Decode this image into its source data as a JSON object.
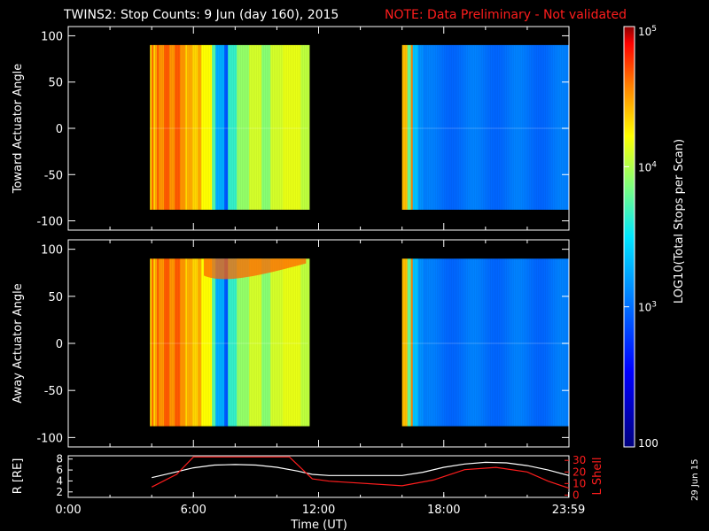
{
  "title": "TWINS2: Stop Counts:  9 Jun (day 160), 2015",
  "note": "NOTE: Data Preliminary - Not validated",
  "date_stamp": "29 Jun 15",
  "colorbar": {
    "label": "LOG10(Total Stops per Scan)",
    "ticks": [
      "100",
      "10^3",
      "10^4",
      "10^5"
    ]
  },
  "chart_data": [
    {
      "type": "heatmap",
      "ylabel": "Toward Actuator Angle",
      "yticks": [
        "100",
        "50",
        "0",
        "-50",
        "-100"
      ],
      "ylim": [
        -110,
        110
      ],
      "xlim": [
        "0:00",
        "24:00"
      ],
      "color_scale": "log",
      "value_range": [
        100,
        100000
      ],
      "data_blocks": [
        {
          "x_start": "3:55",
          "x_end": "11:30",
          "y_range": [
            -88,
            90
          ],
          "description": "high counts 10^3-10^5, banded in time"
        },
        {
          "x_start": "16:00",
          "x_end": "23:55",
          "y_range": [
            -88,
            90
          ],
          "description": "low counts ~10^2.5-10^3"
        }
      ]
    },
    {
      "type": "heatmap",
      "ylabel": "Away Actuator Angle",
      "yticks": [
        "100",
        "50",
        "0",
        "-50",
        "-100"
      ],
      "ylim": [
        -110,
        110
      ],
      "xlim": [
        "0:00",
        "24:00"
      ],
      "color_scale": "log",
      "value_range": [
        100,
        100000
      ],
      "data_blocks": [
        {
          "x_start": "3:55",
          "x_end": "11:30",
          "y_range": [
            -88,
            90
          ]
        },
        {
          "x_start": "16:00",
          "x_end": "23:55",
          "y_range": [
            -88,
            90
          ]
        }
      ]
    },
    {
      "type": "line",
      "ylabel_left": "R [RE]",
      "ylabel_right": "L Shell",
      "xlabel": "Time (UT)",
      "xticks": [
        "0:00",
        "6:00",
        "12:00",
        "18:00",
        "23:59"
      ],
      "yticks_left": [
        "8",
        "6",
        "4",
        "2"
      ],
      "yticks_right": [
        "30",
        "20",
        "10",
        "0"
      ],
      "series": [
        {
          "name": "R",
          "axis": "left",
          "color": "#ffffff",
          "x": [
            4.0,
            5.0,
            6.0,
            7.0,
            8.0,
            9.0,
            10.0,
            11.0,
            11.7,
            12.5,
            14.0,
            16.0,
            17.0,
            18.0,
            19.0,
            20.0,
            21.0,
            22.0,
            23.0,
            24.0
          ],
          "y": [
            4.6,
            5.5,
            6.4,
            6.9,
            7.0,
            6.9,
            6.5,
            5.8,
            5.2,
            5.0,
            5.0,
            5.0,
            5.6,
            6.5,
            7.1,
            7.4,
            7.3,
            6.8,
            6.0,
            5.0
          ]
        },
        {
          "name": "L Shell",
          "axis": "right",
          "color": "#ff1d1d",
          "x": [
            4.0,
            5.2,
            6.0,
            10.6,
            11.7,
            12.5,
            16.0,
            17.5,
            19.0,
            20.5,
            22.0,
            23.0,
            24.0
          ],
          "y": [
            7,
            18,
            33,
            33,
            14,
            12,
            8,
            13,
            22,
            24,
            20,
            12,
            6
          ]
        }
      ]
    }
  ],
  "colors": {
    "scale": [
      "#000080",
      "#0000ff",
      "#0080ff",
      "#00ffff",
      "#80ff80",
      "#ffff00",
      "#ff8000",
      "#ff0000",
      "#800000"
    ]
  }
}
